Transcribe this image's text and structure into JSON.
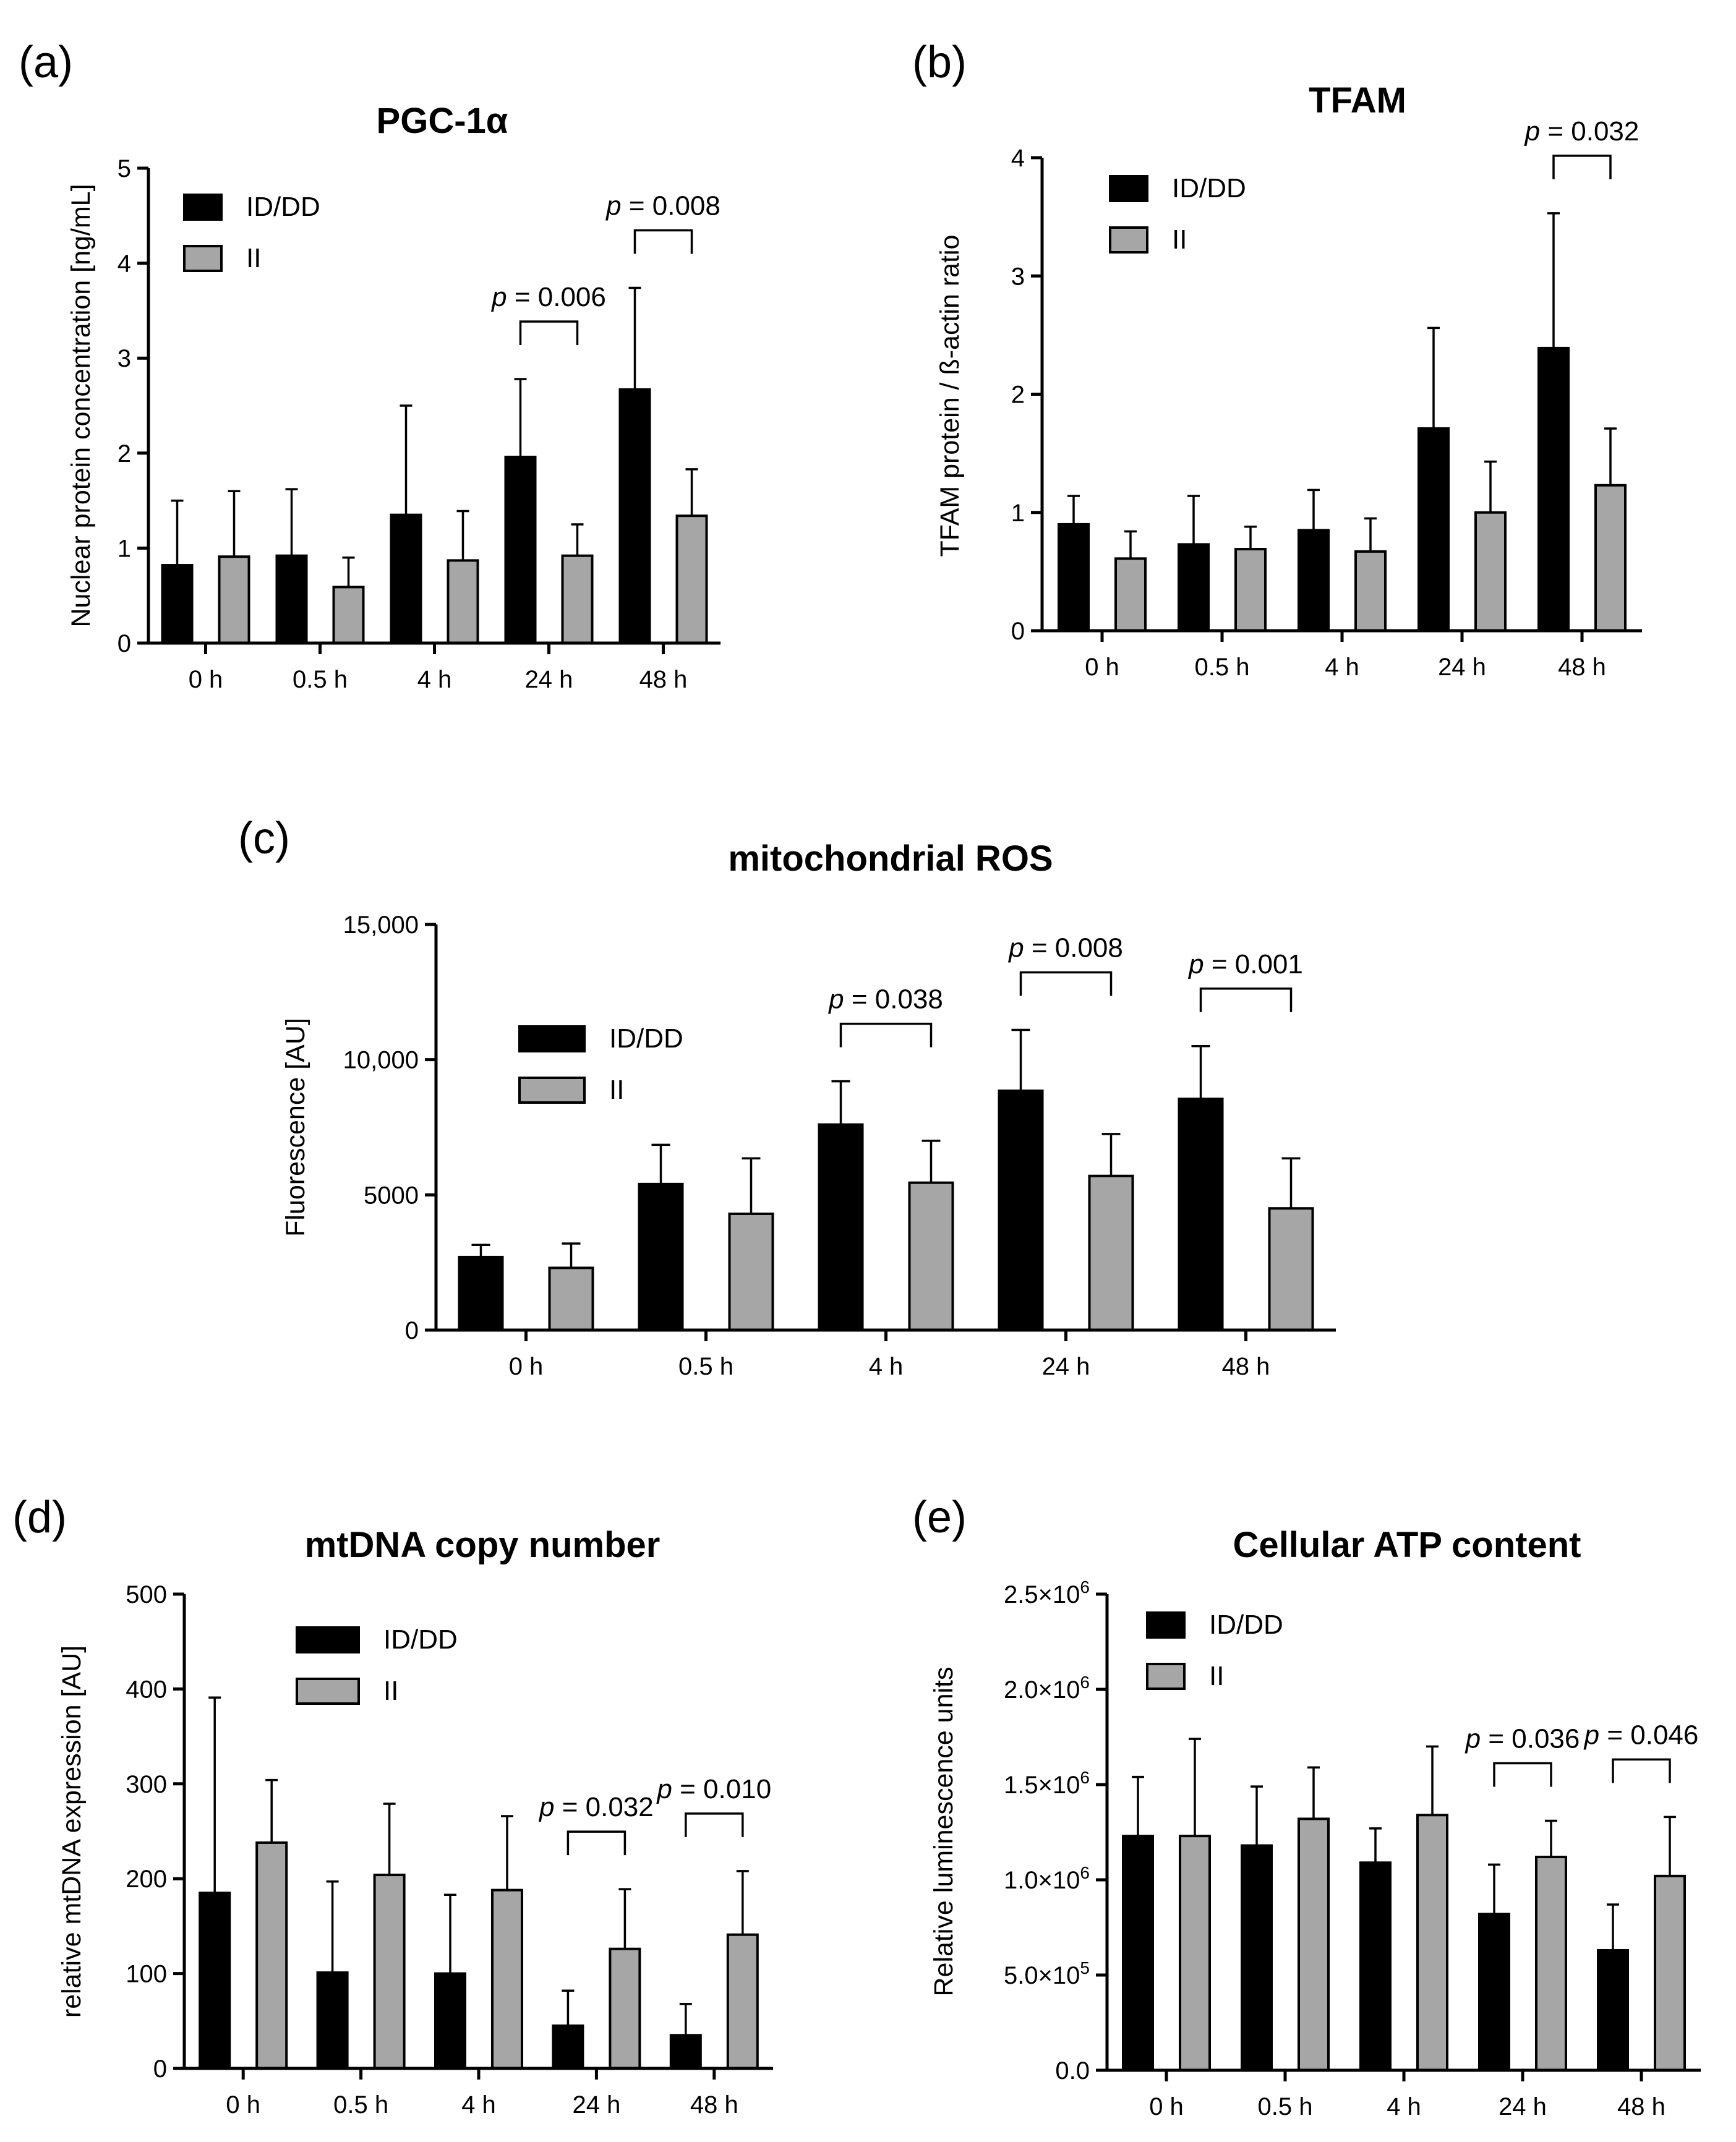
{
  "colors": {
    "ID/DD": "#000000",
    "II": "#a6a6a6",
    "stroke": "#000000"
  },
  "chart_data": [
    {
      "id": "a",
      "panel_label": "(a)",
      "type": "bar",
      "title": "PGC-1α",
      "xlabel": "",
      "ylabel": "Nuclear protein concentration [ng/mL]",
      "categories": [
        "0 h",
        "0.5 h",
        "4 h",
        "24 h",
        "48 h"
      ],
      "ylim": [
        0,
        5
      ],
      "yticks": [
        0,
        1,
        2,
        3,
        4,
        5
      ],
      "ytick_labels": [
        "0",
        "1",
        "2",
        "3",
        "4",
        "5"
      ],
      "grid": false,
      "legend": "top-left",
      "series": [
        {
          "name": "ID/DD",
          "values": [
            0.82,
            0.92,
            1.35,
            1.96,
            2.67
          ],
          "errors": [
            0.68,
            0.7,
            1.15,
            0.82,
            1.07
          ]
        },
        {
          "name": "II",
          "values": [
            0.91,
            0.59,
            0.87,
            0.92,
            1.34
          ],
          "errors": [
            0.69,
            0.31,
            0.52,
            0.33,
            0.49
          ]
        }
      ],
      "annotations": [
        {
          "category_index": 3,
          "p_prefix": "p",
          "p_value": " = 0.006"
        },
        {
          "category_index": 4,
          "p_prefix": "p",
          "p_value": " = 0.008"
        }
      ]
    },
    {
      "id": "b",
      "panel_label": "(b)",
      "type": "bar",
      "title": "TFAM",
      "xlabel": "",
      "ylabel": "TFAM protein / ß-actin ratio",
      "categories": [
        "0 h",
        "0.5 h",
        "4 h",
        "24 h",
        "48 h"
      ],
      "ylim": [
        0,
        4
      ],
      "yticks": [
        0,
        1,
        2,
        3,
        4
      ],
      "ytick_labels": [
        "0",
        "1",
        "2",
        "3",
        "4"
      ],
      "grid": false,
      "legend": "top-left",
      "series": [
        {
          "name": "ID/DD",
          "values": [
            0.9,
            0.73,
            0.85,
            1.71,
            2.39
          ],
          "errors": [
            0.24,
            0.41,
            0.34,
            0.85,
            1.14
          ]
        },
        {
          "name": "II",
          "values": [
            0.61,
            0.69,
            0.67,
            1.0,
            1.23
          ],
          "errors": [
            0.23,
            0.19,
            0.28,
            0.43,
            0.48
          ]
        }
      ],
      "annotations": [
        {
          "category_index": 4,
          "p_prefix": "p",
          "p_value": " = 0.032"
        }
      ]
    },
    {
      "id": "c",
      "panel_label": "(c)",
      "type": "bar",
      "title": "mitochondrial ROS",
      "xlabel": "",
      "ylabel": "Fluorescence [AU]",
      "categories": [
        "0 h",
        "0.5 h",
        "4 h",
        "24 h",
        "48 h"
      ],
      "ylim": [
        0,
        15000
      ],
      "yticks": [
        0,
        5000,
        10000,
        15000
      ],
      "ytick_labels": [
        "0",
        "5000",
        "10,000",
        "15,000"
      ],
      "grid": false,
      "legend": "top-left",
      "series": [
        {
          "name": "ID/DD",
          "values": [
            2700,
            5400,
            7600,
            8850,
            8550
          ],
          "errors": [
            450,
            1450,
            1600,
            2250,
            1950
          ]
        },
        {
          "name": "II",
          "values": [
            2300,
            4300,
            5450,
            5700,
            4500
          ],
          "errors": [
            900,
            2050,
            1550,
            1550,
            1850
          ]
        }
      ],
      "annotations": [
        {
          "category_index": 2,
          "p_prefix": "p",
          "p_value": " = 0.038"
        },
        {
          "category_index": 3,
          "p_prefix": "p",
          "p_value": " = 0.008"
        },
        {
          "category_index": 4,
          "p_prefix": "p",
          "p_value": " = 0.001"
        }
      ]
    },
    {
      "id": "d",
      "panel_label": "(d)",
      "type": "bar",
      "title": "mtDNA copy number",
      "xlabel": "",
      "ylabel": "relative mtDNA expression [AU]",
      "categories": [
        "0 h",
        "0.5 h",
        "4 h",
        "24 h",
        "48 h"
      ],
      "ylim": [
        0,
        500
      ],
      "yticks": [
        0,
        100,
        200,
        300,
        400,
        500
      ],
      "ytick_labels": [
        "0",
        "100",
        "200",
        "300",
        "400",
        "500"
      ],
      "grid": false,
      "legend": "top-left",
      "series": [
        {
          "name": "ID/DD",
          "values": [
            185,
            101,
            100,
            45,
            35
          ],
          "errors": [
            206,
            96,
            83,
            37,
            33
          ]
        },
        {
          "name": "II",
          "values": [
            238,
            204,
            188,
            126,
            141
          ],
          "errors": [
            66,
            75,
            78,
            63,
            67
          ]
        }
      ],
      "annotations": [
        {
          "category_index": 3,
          "p_prefix": "p",
          "p_value": " = 0.032"
        },
        {
          "category_index": 4,
          "p_prefix": "p",
          "p_value": " = 0.010"
        }
      ]
    },
    {
      "id": "e",
      "panel_label": "(e)",
      "type": "bar",
      "title": "Cellular ATP content",
      "xlabel": "",
      "ylabel": "Relative luminescence units",
      "categories": [
        "0 h",
        "0.5 h",
        "4 h",
        "24 h",
        "48 h"
      ],
      "ylim": [
        0,
        2500000
      ],
      "yticks": [
        0,
        500000,
        1000000,
        1500000,
        2000000,
        2500000
      ],
      "ytick_labels": [
        {
          "m": "0.0",
          "e": ""
        },
        {
          "m": "5.0×10",
          "e": "5"
        },
        {
          "m": "1.0×10",
          "e": "6"
        },
        {
          "m": "1.5×10",
          "e": "6"
        },
        {
          "m": "2.0×10",
          "e": "6"
        },
        {
          "m": "2.5×10",
          "e": "6"
        }
      ],
      "grid": false,
      "legend": "top-left",
      "series": [
        {
          "name": "ID/DD",
          "values": [
            1230000,
            1180000,
            1090000,
            820000,
            630000
          ],
          "errors": [
            310000,
            310000,
            180000,
            260000,
            240000
          ]
        },
        {
          "name": "II",
          "values": [
            1230000,
            1320000,
            1340000,
            1120000,
            1020000
          ],
          "errors": [
            510000,
            270000,
            360000,
            190000,
            310000
          ]
        }
      ],
      "annotations": [
        {
          "category_index": 3,
          "p_prefix": "p",
          "p_value": " = 0.036"
        },
        {
          "category_index": 4,
          "p_prefix": "p",
          "p_value": " = 0.046"
        }
      ]
    }
  ]
}
